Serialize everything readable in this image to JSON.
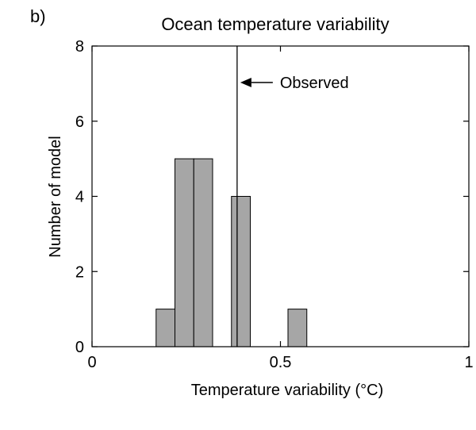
{
  "chart_data": {
    "type": "bar",
    "panel_label": "b)",
    "title": "Ocean temperature variability",
    "xlabel": "Temperature variability (°C)",
    "ylabel": "Number of model",
    "xlim": [
      0,
      1
    ],
    "ylim": [
      0,
      8
    ],
    "xticks": [
      0,
      0.5,
      1
    ],
    "xtick_labels": [
      "0",
      "0.5",
      "1"
    ],
    "yticks": [
      0,
      2,
      4,
      6,
      8
    ],
    "ytick_labels": [
      "0",
      "2",
      "4",
      "6",
      "8"
    ],
    "bin_width": 0.05,
    "bars": [
      {
        "x0": 0.17,
        "x1": 0.22,
        "count": 1
      },
      {
        "x0": 0.22,
        "x1": 0.27,
        "count": 5
      },
      {
        "x0": 0.27,
        "x1": 0.32,
        "count": 5
      },
      {
        "x0": 0.37,
        "x1": 0.42,
        "count": 4
      },
      {
        "x0": 0.52,
        "x1": 0.57,
        "count": 1
      }
    ],
    "reference_line": {
      "x": 0.385,
      "label": "Observed"
    },
    "grid": false,
    "legend": "none"
  }
}
